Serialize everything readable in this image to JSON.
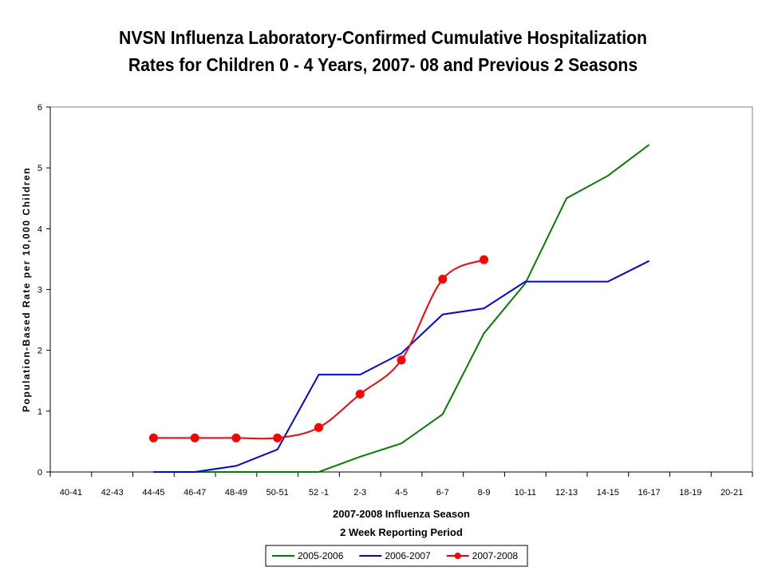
{
  "title_line1": "NVSN Influenza Laboratory-Confirmed Cumulative Hospitalization",
  "title_line2": "Rates for Children 0 - 4 Years, 2007- 08 and Previous 2 Seasons",
  "chart_data": {
    "type": "line",
    "title": "NVSN Influenza Laboratory-Confirmed Cumulative Hospitalization Rates for Children 0 - 4 Years, 2007- 08 and Previous 2 Seasons",
    "xlabel_line1": "2007-2008 Influenza Season",
    "xlabel_line2": "2 Week Reporting Period",
    "ylabel": "Population-Based Rate per 10,000 Children",
    "ylim": [
      0,
      6
    ],
    "yticks": [
      "0",
      "1",
      "2",
      "3",
      "4",
      "5",
      "6"
    ],
    "categories": [
      "40-41",
      "42-43",
      "44-45",
      "46-47",
      "48-49",
      "50-51",
      "52 -1",
      "2-3",
      "4-5",
      "6-7",
      "8-9",
      "10-11",
      "12-13",
      "14-15",
      "16-17",
      "18-19",
      "20-21"
    ],
    "grid": false,
    "legend_position": "bottom",
    "series": [
      {
        "name": "2005-2006",
        "color": "#008000",
        "marker": "none",
        "smooth": false,
        "values": [
          null,
          null,
          0,
          0,
          0,
          0,
          0,
          0.25,
          0.47,
          0.95,
          2.28,
          3.1,
          4.5,
          4.87,
          5.38,
          null,
          null
        ]
      },
      {
        "name": "2006-2007",
        "color": "#0000ff",
        "marker": "none",
        "smooth": false,
        "values": [
          null,
          null,
          0,
          0,
          0.1,
          0.37,
          1.6,
          1.6,
          1.95,
          2.59,
          2.69,
          3.13,
          3.13,
          3.13,
          3.47,
          null,
          null
        ]
      },
      {
        "name": "2007-2008",
        "color": "#ff0000",
        "marker": "circle",
        "smooth": true,
        "values": [
          null,
          null,
          0.56,
          0.56,
          0.56,
          0.56,
          0.73,
          1.28,
          1.84,
          3.17,
          3.49,
          null,
          null,
          null,
          null,
          null,
          null
        ]
      }
    ]
  }
}
